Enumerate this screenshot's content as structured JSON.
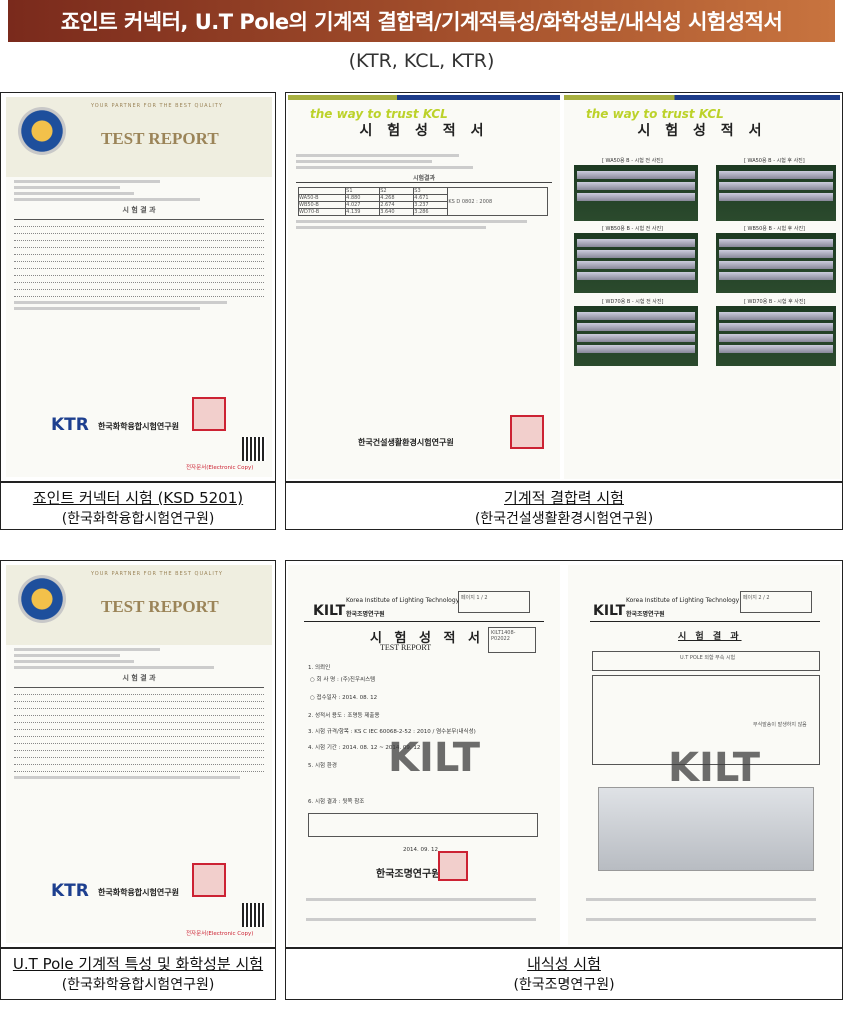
{
  "title": "죠인트 커넥터, U.T Pole의 기계적 결합력/기계적특성/화학성분/내식성 시험성적서",
  "subtitle": "(KTR, KCL, KTR)",
  "panels": [
    {
      "caption": "죠인트 커넥터 시험 (KSD 5201)",
      "org": "(한국화학융합시험연구원)",
      "doc": {
        "partner": "YOUR PARTNER FOR THE BEST QUALITY",
        "heading": "TEST REPORT",
        "section": "시 험 결 과",
        "institute": "한국화학융합시험연구원",
        "logo": "KTR",
        "copy": "전자문서(Electronic Copy)"
      }
    },
    {
      "caption": "기계적 결합력 시험",
      "org": "(한국건설생활환경시험연구원)",
      "docs": [
        {
          "brand": "the way to trust KCL",
          "heading": "시 험 성 적 서",
          "section": "시험결과",
          "table_headers": [
            "S1",
            "S2",
            "S3"
          ],
          "rows": [
            {
              "name": "WA50-B",
              "values": [
                "4.880",
                "4.268",
                "4.671"
              ]
            },
            {
              "name": "WB50-B",
              "values": [
                "4.027",
                "2.674",
                "3.237"
              ]
            },
            {
              "name": "WD70-B",
              "values": [
                "4.139",
                "3.640",
                "3.286"
              ]
            }
          ],
          "method": "KS D 0802 : 2008",
          "institute": "한국건설생활환경시험연구원"
        },
        {
          "brand": "the way to trust KCL",
          "heading": "시 험 성 적 서",
          "photo_labels": [
            "[ WA50용 B - 시험 전 사진]",
            "[ WA50용 B - 시험 후 사진]",
            "[ WB50용 B - 시험 전 사진]",
            "[ WB50용 B - 시험 후 사진]",
            "[ WD70용 B - 시험 전 사진]",
            "[ WD70용 B - 시험 후 사진]"
          ]
        }
      ]
    },
    {
      "caption": "U.T Pole 기계적 특성 및 화학성분 시험",
      "org": "(한국화학융합시험연구원)",
      "doc": {
        "partner": "YOUR PARTNER FOR THE BEST QUALITY",
        "heading": "TEST REPORT",
        "section": "시 험 결 과",
        "institute": "한국화학융합시험연구원",
        "logo": "KTR",
        "copy": "전자문서(Electronic Copy)"
      }
    },
    {
      "caption": "내식성 시험",
      "org": "(한국조명연구원)",
      "docs": [
        {
          "logo": "KILT",
          "logo_en": "Korea Institute of Lighting Technology",
          "logo_ko": "한국조명연구원",
          "page": "페이지 1 / 2",
          "heading": "시 험 성 적 서",
          "heading_en": "TEST REPORT",
          "report_no": "KILT1408-P02022",
          "lines": [
            "1. 의뢰인",
            "○ 회 사 명 : (주)진우씨스템",
            "○ 접수일자 : 2014. 08. 12",
            "2. 성적서 용도 : 조명등 제출용",
            "3. 시험 규격/항목 : KS C IEC 60068-2-52 : 2010 / 염수분무(내식성)",
            "4. 시험 기간 : 2014. 08. 12 ~ 2014. 09. 12",
            "5. 시험 환경",
            "6. 시험 결과 : 뒷쪽 참조"
          ],
          "date": "2014. 09. 12",
          "institute": "한국조명연구원"
        },
        {
          "logo": "KILT",
          "logo_en": "Korea Institute of Lighting Technology",
          "logo_ko": "한국조명연구원",
          "page": "페이지 2 / 2",
          "heading": "시 험 결 과",
          "item": "U.T POLE 외함 부속 시험",
          "result": "부식발송이 발생하지 않음"
        }
      ]
    }
  ]
}
